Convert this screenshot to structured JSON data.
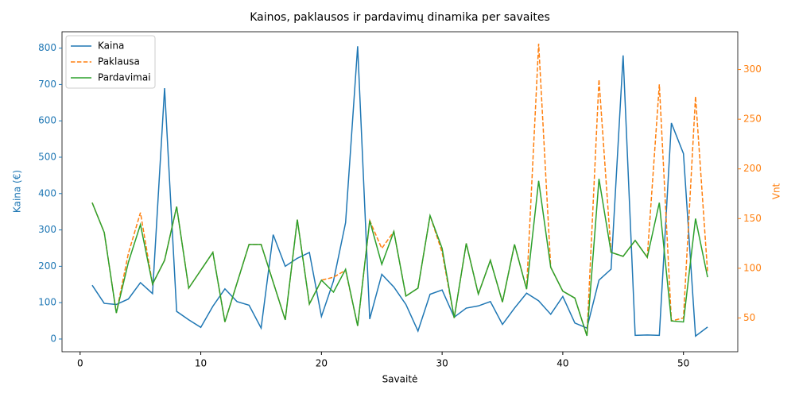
{
  "chart_data": {
    "type": "line",
    "title": "Kainos, paklausos ir pardavimų dinamika per savaites",
    "xlabel": "Savaitė",
    "ylabel": "Kaina (€)",
    "y2label": "Vnt",
    "x": [
      1,
      2,
      3,
      4,
      5,
      6,
      7,
      8,
      9,
      10,
      11,
      12,
      13,
      14,
      15,
      16,
      17,
      18,
      19,
      20,
      21,
      22,
      23,
      24,
      25,
      26,
      27,
      28,
      29,
      30,
      31,
      32,
      33,
      34,
      35,
      36,
      37,
      38,
      39,
      40,
      41,
      42,
      43,
      44,
      45,
      46,
      47,
      48,
      49,
      50,
      51,
      52
    ],
    "xlim": [
      -1.5,
      54.5
    ],
    "xticks": [
      0,
      10,
      20,
      30,
      40,
      50
    ],
    "ylim": [
      -35,
      845
    ],
    "yticks": [
      0,
      100,
      200,
      300,
      400,
      500,
      600,
      700,
      800
    ],
    "y2lim": [
      16,
      338
    ],
    "y2ticks": [
      50,
      100,
      150,
      200,
      250,
      300
    ],
    "legend": "upper left",
    "series": [
      {
        "name": "Kaina",
        "color": "#1f77b4",
        "linestyle": "solid",
        "axis": "y",
        "values": [
          148,
          98,
          95,
          110,
          155,
          125,
          690,
          76,
          53,
          32,
          90,
          138,
          103,
          93,
          30,
          287,
          200,
          222,
          238,
          62,
          160,
          320,
          805,
          55,
          178,
          143,
          95,
          22,
          123,
          135,
          60,
          85,
          91,
          103,
          40,
          85,
          126,
          105,
          68,
          117,
          44,
          30,
          162,
          192,
          780,
          10,
          11,
          10,
          594,
          510,
          8,
          33
        ]
      },
      {
        "name": "Paklausa",
        "color": "#ff7f0e",
        "linestyle": "dashed",
        "axis": "y2",
        "values": [
          166,
          136,
          55,
          115,
          156,
          84,
          108,
          162,
          80,
          98,
          116,
          46,
          85,
          124,
          124,
          86,
          48,
          149,
          64,
          88,
          91,
          98,
          42,
          148,
          120,
          137,
          72,
          80,
          153,
          116,
          50,
          125,
          74,
          108,
          66,
          124,
          79,
          326,
          101,
          77,
          70,
          32,
          290,
          116,
          112,
          128,
          111,
          285,
          47,
          50,
          273,
          96
        ]
      },
      {
        "name": "Pardavimai",
        "color": "#2ca02c",
        "linestyle": "solid",
        "axis": "y2",
        "values": [
          166,
          136,
          55,
          106,
          144,
          84,
          108,
          162,
          80,
          98,
          116,
          46,
          85,
          124,
          124,
          86,
          48,
          149,
          64,
          88,
          76,
          99,
          42,
          148,
          104,
          137,
          72,
          80,
          153,
          120,
          50,
          125,
          74,
          108,
          66,
          124,
          79,
          188,
          101,
          77,
          70,
          32,
          190,
          116,
          112,
          128,
          111,
          166,
          47,
          46,
          150,
          91
        ]
      }
    ]
  }
}
